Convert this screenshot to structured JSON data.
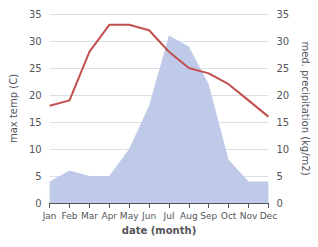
{
  "chart_data": {
    "type": "line",
    "xlabel": "date (month)",
    "ylabel": "max temp (C)",
    "y2label": "med. precipitation (kg/m2)",
    "categories": [
      "Jan",
      "Feb",
      "Mar",
      "Apr",
      "May",
      "Jun",
      "Jul",
      "Aug",
      "Sep",
      "Oct",
      "Nov",
      "Dec"
    ],
    "series": [
      {
        "type": "area",
        "color": "#bfc9e8",
        "axis": "y2",
        "values": [
          4,
          6,
          5,
          5,
          10,
          18,
          31,
          29,
          22,
          8,
          4,
          4
        ]
      },
      {
        "type": "line",
        "color": "#c0504d",
        "values": [
          18,
          19,
          28,
          33,
          33,
          32,
          28,
          25,
          24,
          22,
          19,
          16
        ]
      }
    ],
    "ylim": [
      0,
      35
    ],
    "yticks": [
      0,
      5,
      10,
      15,
      20,
      25,
      30,
      35
    ],
    "y2lim": [
      0,
      35
    ],
    "y2ticks": [
      0,
      5,
      10,
      15,
      20,
      25,
      30,
      35
    ],
    "grid": true
  }
}
